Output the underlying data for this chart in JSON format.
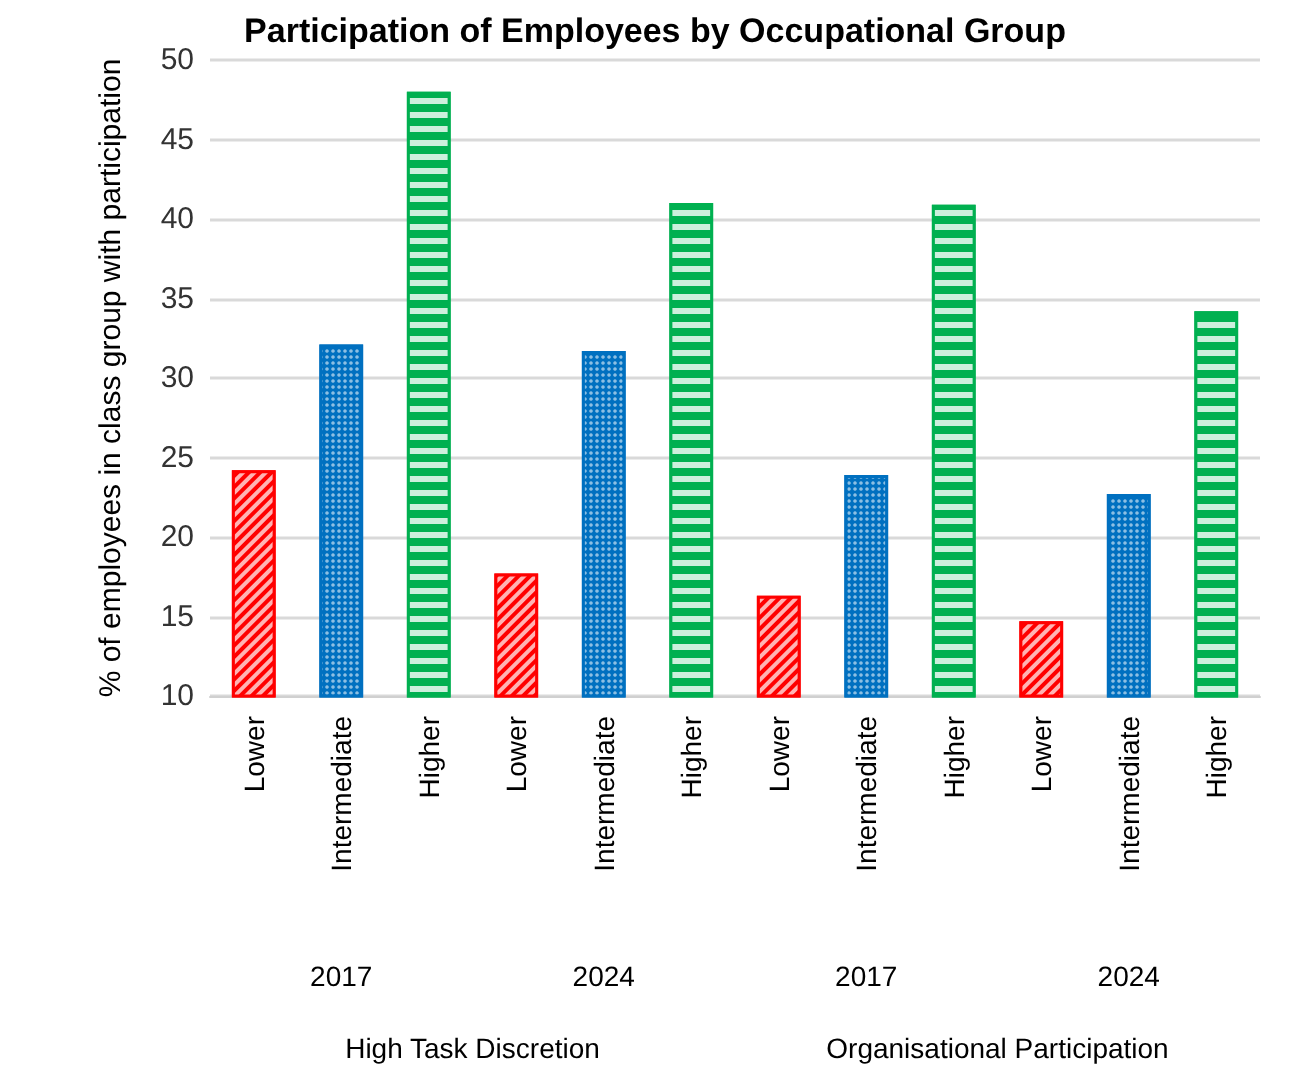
{
  "chart_data": {
    "type": "bar",
    "title": "Participation of Employees by Occupational Group",
    "ylabel": "% of employees in class group with participation",
    "categories": [
      "Lower",
      "Intermediate",
      "Higher",
      "Lower",
      "Intermediate",
      "Higher",
      "Lower",
      "Intermediate",
      "Higher",
      "Lower",
      "Intermediate",
      "Higher"
    ],
    "values": [
      24.2,
      32.1,
      48.0,
      17.7,
      31.7,
      41.0,
      16.3,
      23.9,
      40.9,
      14.7,
      22.7,
      34.2
    ],
    "colors": [
      "#ff0000",
      "#0070c0",
      "#00b050",
      "#ff0000",
      "#0070c0",
      "#00b050",
      "#ff0000",
      "#0070c0",
      "#00b050",
      "#ff0000",
      "#0070c0",
      "#00b050"
    ],
    "annotations": [
      "2017",
      "2024",
      "2017",
      "2024",
      "High Task Discretion",
      "Organisational Participation"
    ],
    "ylim": [
      10,
      50
    ],
    "yticks": [
      10,
      15,
      20,
      25,
      30,
      35,
      40,
      45,
      50
    ],
    "grid": "y"
  }
}
